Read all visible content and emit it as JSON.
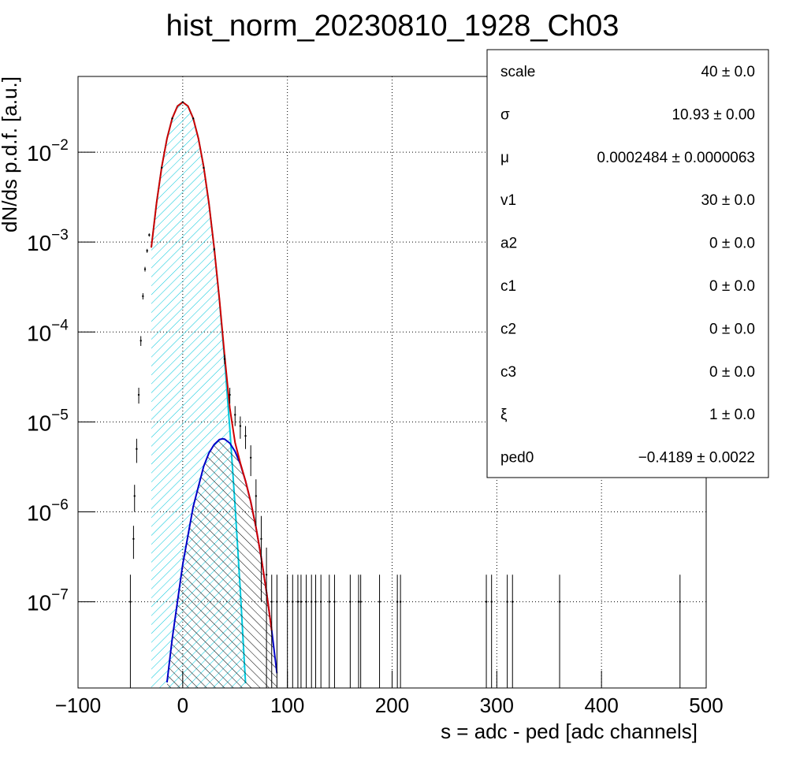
{
  "chart_data": {
    "type": "histogram_fit",
    "title": "hist_norm_20230810_1928_Ch03",
    "x_label": "s = adc - ped [adc channels]",
    "y_label": "dN/ds p.d.f. [a.u.]",
    "log_y": true,
    "grid": true,
    "xlim": [
      -100,
      500
    ],
    "ylim": [
      1.1e-08,
      0.0695
    ],
    "xticks": [
      {
        "value": -100,
        "label": "−100"
      },
      0,
      100,
      200,
      300,
      400,
      500
    ],
    "yticks": [
      {
        "value": 1e-07,
        "label": "10",
        "exp": "−7"
      },
      {
        "value": 1e-06,
        "label": "10",
        "exp": "−6"
      },
      {
        "value": 1e-05,
        "label": "10",
        "exp": "−5"
      },
      {
        "value": 0.0001,
        "label": "10",
        "exp": "−4"
      },
      {
        "value": 0.001,
        "label": "10",
        "exp": "−3"
      },
      {
        "value": 0.01,
        "label": "10",
        "exp": "−2"
      }
    ],
    "series": [
      {
        "kind": "curve",
        "color": "#00c8dc",
        "fill": "hatch-cyan",
        "x": [
          -30,
          -25,
          -20,
          -15,
          -10,
          -5,
          0,
          5,
          10,
          15,
          20,
          25,
          30,
          35,
          40,
          45,
          50,
          55,
          60
        ],
        "values": [
          0.00087,
          0.00272,
          0.0069,
          0.0142,
          0.0238,
          0.0325,
          0.036,
          0.0325,
          0.0238,
          0.0142,
          0.0069,
          0.00272,
          0.00087,
          0.000229,
          4.9e-05,
          8.4e-06,
          1.17e-06,
          1.34e-07,
          1.24e-08
        ]
      },
      {
        "kind": "curve",
        "color": "#0000c8",
        "fill": "hatch-black",
        "x": [
          -15,
          -10,
          0,
          10,
          20,
          25,
          30,
          35,
          38,
          40,
          45,
          50,
          55,
          60,
          65,
          70,
          75,
          80,
          85,
          90
        ],
        "values": [
          1.27e-08,
          3.9e-08,
          2.6e-07,
          1.14e-06,
          3.2e-06,
          4.5e-06,
          5.6e-06,
          6.37e-06,
          6.5e-06,
          6.44e-06,
          5.8e-06,
          4.7e-06,
          3.4e-06,
          2.2e-06,
          1.29e-06,
          6.7e-07,
          3.1e-07,
          1.29e-07,
          4.8e-08,
          1.6e-08
        ]
      },
      {
        "kind": "curve",
        "color": "#d00000",
        "x": [
          -30,
          -25,
          -20,
          -15,
          -10,
          -5,
          0,
          5,
          10,
          15,
          20,
          25,
          30,
          35,
          40,
          45,
          50,
          55,
          60,
          65,
          70,
          75,
          80,
          85
        ],
        "values": [
          0.00087,
          0.00272,
          0.0069,
          0.0142,
          0.0238,
          0.0325,
          0.036,
          0.0325,
          0.0238,
          0.0142,
          0.0069,
          0.00272,
          0.00087,
          0.000235,
          5.5e-05,
          1.42e-05,
          5.9e-06,
          3.5e-06,
          2.2e-06,
          1.29e-06,
          6.7e-07,
          3.1e-07,
          1.29e-07,
          4.8e-08
        ]
      },
      {
        "kind": "points",
        "color": "#000000",
        "x": [
          -50,
          -47,
          -46,
          -44,
          -42,
          -40,
          -38,
          -36,
          -34,
          -32,
          -20,
          -10,
          0,
          10,
          20,
          30,
          40,
          45,
          50,
          55,
          60,
          65,
          70,
          75,
          80,
          85,
          90,
          100,
          105,
          110,
          113,
          118,
          123,
          127,
          132,
          140,
          145,
          160,
          168,
          170,
          188,
          205,
          208,
          290,
          295,
          310,
          315,
          360,
          475
        ],
        "values": [
          1e-07,
          5e-07,
          1.5e-06,
          5e-06,
          2e-05,
          8e-05,
          0.00025,
          0.0005,
          0.0008,
          0.0012,
          0.0067,
          0.0237,
          0.036,
          0.0237,
          0.0067,
          0.00083,
          5e-05,
          2e-05,
          1.2e-05,
          9e-06,
          7e-06,
          4e-06,
          1.5e-06,
          5e-07,
          2e-07,
          1e-07,
          1e-07,
          1e-07,
          1e-07,
          1e-07,
          1e-07,
          1e-07,
          1e-07,
          1e-07,
          1e-07,
          1e-07,
          1e-07,
          1e-07,
          1e-07,
          1e-07,
          1e-07,
          1e-07,
          1e-07,
          1e-07,
          1e-07,
          1e-07,
          1e-07,
          1e-07,
          1e-07
        ],
        "errors": [
          1e-07,
          2e-07,
          5e-07,
          1.5e-06,
          4e-06,
          1e-05,
          2e-05,
          3e-05,
          4e-05,
          5e-05,
          0.0001,
          0.0002,
          0.0002,
          0.0002,
          0.0001,
          3e-05,
          6e-06,
          4e-06,
          3e-06,
          2.5e-06,
          2e-06,
          1.5e-06,
          8e-07,
          4e-07,
          2e-07,
          1e-07,
          1e-07,
          1e-07,
          1e-07,
          1e-07,
          1e-07,
          1e-07,
          1e-07,
          1e-07,
          1e-07,
          1e-07,
          1e-07,
          1e-07,
          1e-07,
          1e-07,
          1e-07,
          1e-07,
          1e-07,
          1e-07,
          1e-07,
          1e-07,
          1e-07,
          1e-07,
          1e-07
        ]
      }
    ],
    "stats": [
      {
        "name": "scale",
        "value": "40 ± 0.0"
      },
      {
        "name": "σ",
        "value": "10.93 ± 0.00"
      },
      {
        "name": "μ",
        "value": "0.0002484 ± 0.0000063"
      },
      {
        "name": "v1",
        "value": "30 ± 0.0"
      },
      {
        "name": "a2",
        "value": "0 ± 0.0"
      },
      {
        "name": "c1",
        "value": "0 ± 0.0"
      },
      {
        "name": "c2",
        "value": "0 ± 0.0"
      },
      {
        "name": "c3",
        "value": "0 ± 0.0"
      },
      {
        "name": "ξ",
        "value": "1 ± 0.0"
      },
      {
        "name": "ped0",
        "value": "−0.4189 ± 0.0022"
      }
    ]
  }
}
